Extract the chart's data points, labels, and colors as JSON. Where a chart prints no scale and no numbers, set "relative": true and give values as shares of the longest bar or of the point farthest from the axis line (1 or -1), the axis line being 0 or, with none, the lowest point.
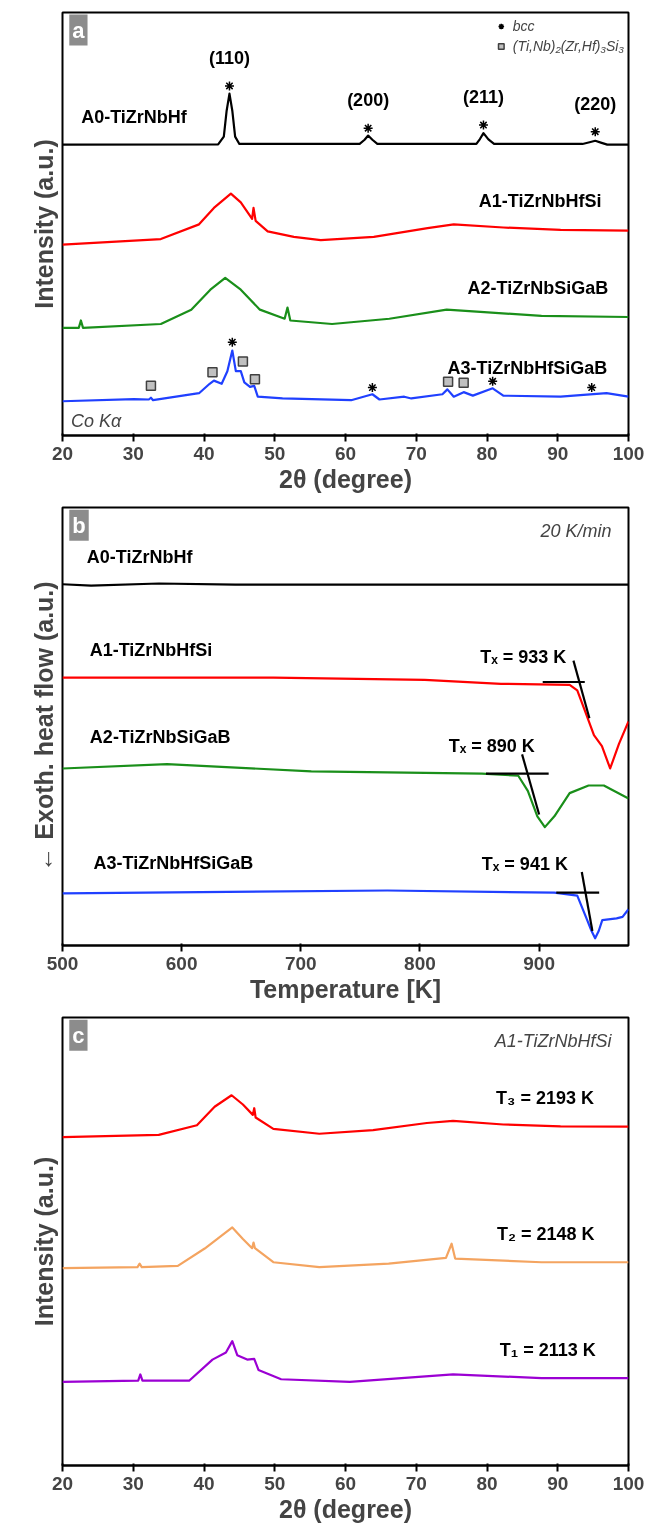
{
  "chart_data": [
    {
      "type": "line",
      "title": "a",
      "xlabel": "2θ (degree)",
      "ylabel": "Intensity (a.u.)",
      "relative": true,
      "xlim": [
        20,
        100
      ],
      "xticks": [
        20,
        30,
        40,
        50,
        60,
        70,
        80,
        90,
        100
      ],
      "legend": "top right",
      "series": [
        {
          "color": "#000000",
          "x": [
            20,
            42,
            42.8,
            43.2,
            43.6,
            44.0,
            44.4,
            45,
            62,
            62.7,
            63.2,
            63.8,
            64.5,
            78.5,
            79,
            79.5,
            80.2,
            81,
            93.5,
            94.5,
            95.3,
            96.2,
            97,
            100
          ],
          "values": [
            0.832,
            0.833,
            0.855,
            0.929,
            0.978,
            0.929,
            0.855,
            0.834,
            0.834,
            0.846,
            0.858,
            0.846,
            0.834,
            0.834,
            0.848,
            0.865,
            0.847,
            0.834,
            0.834,
            0.839,
            0.843,
            0.837,
            0.832,
            0.832
          ]
        },
        {
          "color": "#ff0000",
          "x": [
            20,
            33.9,
            39.3,
            41.4,
            43.8,
            45.2,
            46.8,
            47.0,
            47.3,
            49,
            52.7,
            56.5,
            64,
            71.6,
            75.3,
            82.3,
            90.4,
            100
          ],
          "values": [
            0.546,
            0.562,
            0.604,
            0.651,
            0.692,
            0.667,
            0.62,
            0.651,
            0.614,
            0.584,
            0.568,
            0.559,
            0.568,
            0.593,
            0.604,
            0.595,
            0.588,
            0.586
          ]
        },
        {
          "color": "#1a8f1a",
          "x": [
            20,
            22.3,
            22.6,
            22.9,
            33.9,
            38.2,
            40.9,
            43.0,
            45.2,
            47.9,
            51.4,
            51.8,
            52.2,
            58.1,
            66.2,
            74.3,
            79.6,
            87.7,
            100
          ],
          "values": [
            0.308,
            0.308,
            0.329,
            0.308,
            0.319,
            0.36,
            0.417,
            0.451,
            0.417,
            0.36,
            0.334,
            0.366,
            0.329,
            0.319,
            0.334,
            0.36,
            0.353,
            0.342,
            0.339
          ]
        },
        {
          "color": "#2040ff",
          "x": [
            20,
            30.1,
            32.2,
            32.5,
            32.8,
            39.3,
            40.8,
            41.4,
            42.5,
            43.3,
            44.0,
            44.5,
            45.2,
            45.7,
            46.5,
            47.1,
            47.6,
            51.1,
            60.8,
            63.8,
            64.8,
            68.3,
            69.3,
            73.7,
            74.4,
            75.3,
            76.7,
            78.0,
            80.8,
            82.3,
            90.4,
            96.9,
            100
          ],
          "values": [
            0.098,
            0.104,
            0.103,
            0.108,
            0.101,
            0.121,
            0.148,
            0.157,
            0.148,
            0.184,
            0.243,
            0.184,
            0.184,
            0.152,
            0.139,
            0.142,
            0.111,
            0.106,
            0.101,
            0.118,
            0.103,
            0.111,
            0.106,
            0.118,
            0.132,
            0.111,
            0.124,
            0.114,
            0.135,
            0.114,
            0.111,
            0.121,
            0.111
          ]
        },
        {
          "type": "scatter",
          "name": "bcc",
          "marker": "cross",
          "color": "#000000",
          "x": [
            43.6,
            63.2,
            79.5,
            95.3,
            44.0,
            63.8,
            80.8,
            94.8
          ],
          "values": [
            1.0,
            0.879,
            0.888,
            0.869,
            0.267,
            0.137,
            0.155,
            0.137
          ]
        },
        {
          "type": "scatter",
          "name": "(Ti,Nb)₂(Zr,Hf)₃Si₃",
          "marker": "square",
          "color": "#c0c0c0",
          "x": [
            32.5,
            41.2,
            45.5,
            47.2,
            74.5,
            76.7
          ],
          "values": [
            0.142,
            0.181,
            0.212,
            0.161,
            0.154,
            0.151
          ]
        }
      ],
      "annotations": [
        {
          "text": "(110)",
          "x": 43.6,
          "y": 1.0
        },
        {
          "text": "(200)",
          "x": 63.2,
          "y": 0.879
        },
        {
          "text": "(211)",
          "x": 79.5,
          "y": 0.888
        },
        {
          "text": "(220)",
          "x": 95.3,
          "y": 0.869
        },
        {
          "text": "A0-TiZrNbHf",
          "x": 30.1,
          "y": 0.832
        },
        {
          "text": "A1-TiZrNbHfSi",
          "x": 87.5,
          "y": 0.591
        },
        {
          "text": "A2-TiZrNbSiGaB",
          "x": 87.2,
          "y": 0.342
        },
        {
          "text": "A3-TiZrNbHfSiGaB",
          "x": 85.7,
          "y": 0.113
        },
        "Co Kα"
      ]
    },
    {
      "type": "line",
      "title": "b",
      "xlabel": "Temperature [K]",
      "ylabel": "← Exoth. heat flow (a.u.)",
      "relative": true,
      "xlim": [
        500,
        975
      ],
      "xticks": [
        500,
        600,
        700,
        800,
        900
      ],
      "series": [
        {
          "color": "#000000",
          "x": [
            500,
            524,
            581,
            645,
            800,
            975
          ],
          "values": [
            0.998,
            0.994,
            1.0,
            0.997,
            0.997,
            0.997
          ]
        },
        {
          "color": "#ff0000",
          "x": [
            500,
            677,
            804,
            868,
            925.6,
            932,
            938,
            946,
            952.7,
            959.6,
            967,
            975
          ],
          "values": [
            0.74,
            0.74,
            0.734,
            0.723,
            0.72,
            0.705,
            0.652,
            0.581,
            0.551,
            0.489,
            0.557,
            0.619
          ]
        },
        {
          "color": "#1a8f1a",
          "x": [
            500,
            587.7,
            708.8,
            852,
            882.5,
            890.5,
            898.5,
            904.8,
            912.8,
            925.6,
            941.5,
            954.3,
            975
          ],
          "values": [
            0.489,
            0.501,
            0.481,
            0.475,
            0.469,
            0.427,
            0.357,
            0.327,
            0.357,
            0.421,
            0.442,
            0.442,
            0.406
          ]
        },
        {
          "color": "#2040ff",
          "x": [
            500,
            772.6,
            912.8,
            932,
            940,
            944,
            947,
            950,
            953,
            965,
            970,
            975
          ],
          "values": [
            0.144,
            0.152,
            0.146,
            0.138,
            0.073,
            0.04,
            0.02,
            0.04,
            0.07,
            0.075,
            0.079,
            0.1
          ]
        },
        {
          "color": "#000000",
          "x": [
            903,
            938.3
          ],
          "values": [
            0.728,
            0.728
          ]
        },
        {
          "color": "#000000",
          "x": [
            928.8,
            942.2
          ],
          "values": [
            0.787,
            0.628
          ]
        },
        {
          "color": "#000000",
          "x": [
            855.4,
            908
          ],
          "values": [
            0.475,
            0.475
          ]
        },
        {
          "color": "#000000",
          "x": [
            885.7,
            900
          ],
          "values": [
            0.528,
            0.362
          ]
        },
        {
          "color": "#000000",
          "x": [
            914.4,
            950.4
          ],
          "values": [
            0.146,
            0.146
          ]
        },
        {
          "color": "#000000",
          "x": [
            935.8,
            944.7
          ],
          "values": [
            0.203,
            0.04
          ]
        }
      ],
      "annotations": [
        "20 K/min",
        {
          "text": "A0-TiZrNbHf",
          "x": 564.7,
          "y": 0.997
        },
        {
          "text": "A1-TiZrNbHfSi",
          "x": 574.3,
          "y": 0.74
        },
        {
          "text": "A2-TiZrNbSiGaB",
          "x": 582,
          "y": 0.5
        },
        {
          "text": "A3-TiZrNbHfSiGaB",
          "x": 593,
          "y": 0.15
        },
        {
          "text": "Tₓ = 933 K",
          "x": 886.7,
          "y": 0.721
        },
        {
          "text": "Tₓ = 890 K",
          "x": 860.2,
          "y": 0.474
        },
        {
          "text": "Tₓ = 941 K",
          "x": 888,
          "y": 0.147
        }
      ]
    },
    {
      "type": "line",
      "title": "c",
      "xlabel": "2θ (degree)",
      "ylabel": "Intensity (a.u.)",
      "relative": true,
      "xlim": [
        20,
        100
      ],
      "xticks": [
        20,
        30,
        40,
        50,
        60,
        70,
        80,
        90,
        100
      ],
      "series": [
        {
          "color": "#ff0000",
          "x": [
            20,
            33.6,
            39.0,
            41.5,
            43.9,
            45.5,
            46.9,
            47.1,
            47.3,
            49.8,
            56.3,
            63.9,
            71.5,
            75.2,
            82.3,
            90.4,
            100
          ],
          "values": [
            0.887,
            0.893,
            0.919,
            0.969,
            1.0,
            0.975,
            0.947,
            0.965,
            0.94,
            0.909,
            0.896,
            0.906,
            0.925,
            0.931,
            0.921,
            0.916,
            0.915
          ]
        },
        {
          "color": "#f4a460",
          "x": [
            20,
            30.6,
            30.9,
            31.2,
            36.3,
            40.1,
            44.0,
            45.5,
            46.8,
            47.0,
            47.2,
            49.8,
            56.3,
            66.1,
            74.2,
            75.0,
            75.5,
            87.7,
            100
          ],
          "values": [
            0.533,
            0.536,
            0.545,
            0.536,
            0.539,
            0.586,
            0.643,
            0.612,
            0.587,
            0.602,
            0.587,
            0.549,
            0.536,
            0.545,
            0.561,
            0.599,
            0.559,
            0.549,
            0.549
          ]
        },
        {
          "color": "#9b00d3",
          "x": [
            20,
            30.7,
            31.0,
            31.3,
            37.9,
            41.2,
            43.1,
            44.0,
            44.7,
            46.1,
            47.1,
            47.7,
            50.9,
            60.6,
            75.2,
            87.7,
            100
          ],
          "values": [
            0.226,
            0.229,
            0.246,
            0.229,
            0.229,
            0.286,
            0.305,
            0.336,
            0.298,
            0.286,
            0.288,
            0.258,
            0.233,
            0.226,
            0.246,
            0.236,
            0.236
          ]
        }
      ],
      "annotations": [
        "A1-TiZrNbHfSi",
        {
          "text": "T₃ = 2193 K",
          "x": 88.2,
          "y": 0.917
        },
        {
          "text": "T₂ = 2148 K",
          "x": 88.3,
          "y": 0.549
        },
        {
          "text": "T₁ = 2113 K",
          "x": 88.6,
          "y": 0.236
        }
      ]
    }
  ]
}
